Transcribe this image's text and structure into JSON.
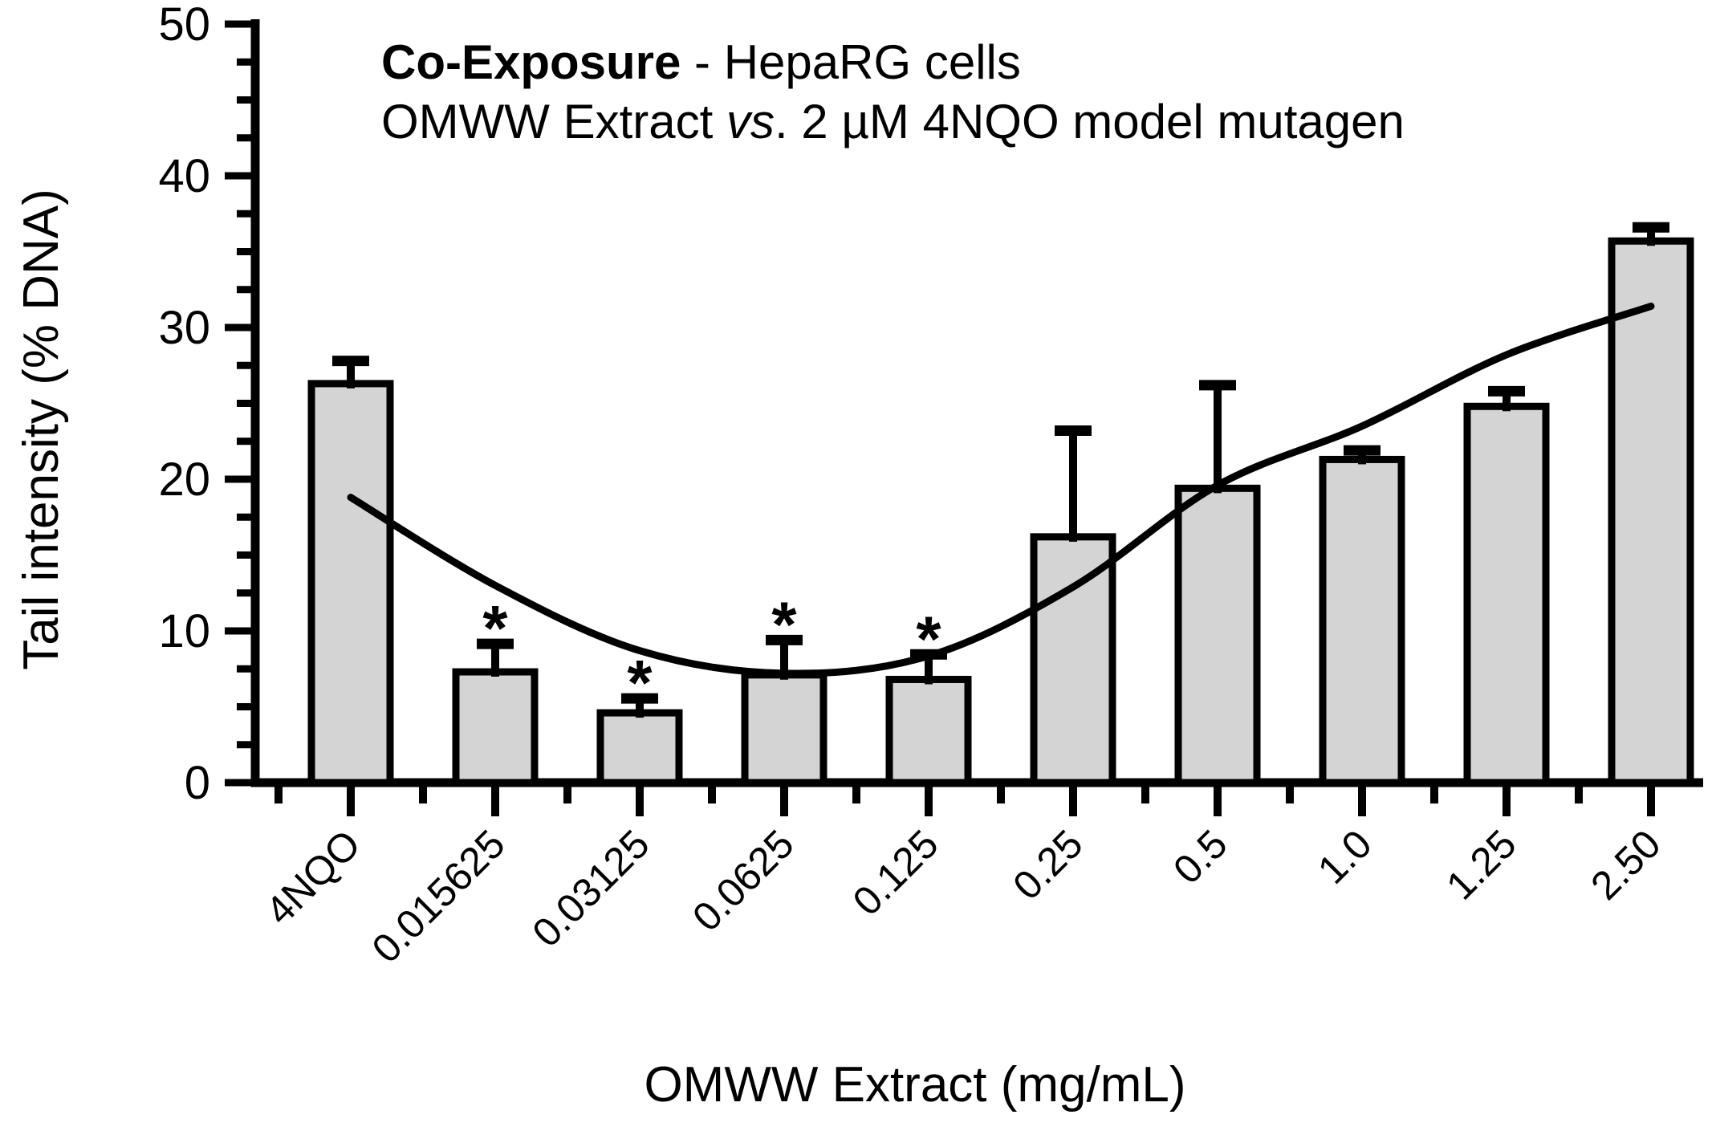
{
  "chart_data": {
    "type": "bar",
    "title_bold": "Co-Exposure",
    "title_rest": " - HepaRG cells",
    "subtitle_pre": "OMWW Extract ",
    "subtitle_italic": "vs",
    "subtitle_post": ". 2 µM 4NQO model mutagen",
    "xlabel": "OMWW Extract (mg/mL)",
    "ylabel": "Tail intensity (% DNA)",
    "ylim": [
      0,
      50
    ],
    "y_major_ticks": [
      "0",
      "10",
      "20",
      "30",
      "40",
      "50"
    ],
    "y_minor_step": 2.5,
    "grid": "off",
    "legend": "none",
    "categories": [
      "4NQO",
      "0.015625",
      "0.03125",
      "0.0625",
      "0.125",
      "0.25",
      "0.5",
      "1.0",
      "1.25",
      "2.50"
    ],
    "values": [
      26.3,
      7.3,
      4.6,
      7.1,
      6.8,
      16.2,
      19.4,
      21.3,
      24.8,
      35.7
    ],
    "errors_up": [
      1.5,
      1.85,
      0.95,
      2.3,
      1.65,
      7.0,
      6.8,
      0.6,
      1.0,
      0.9
    ],
    "significance": [
      "",
      "*",
      "*",
      "*",
      "*",
      "",
      "",
      "",
      "",
      ""
    ],
    "trend_line_values": [
      18.8,
      13.0,
      8.7,
      7.2,
      8.35,
      12.9,
      19.6,
      23.5,
      28.2,
      31.4
    ],
    "bar_color": "#d4d4d4",
    "axis_color": "#000000"
  }
}
